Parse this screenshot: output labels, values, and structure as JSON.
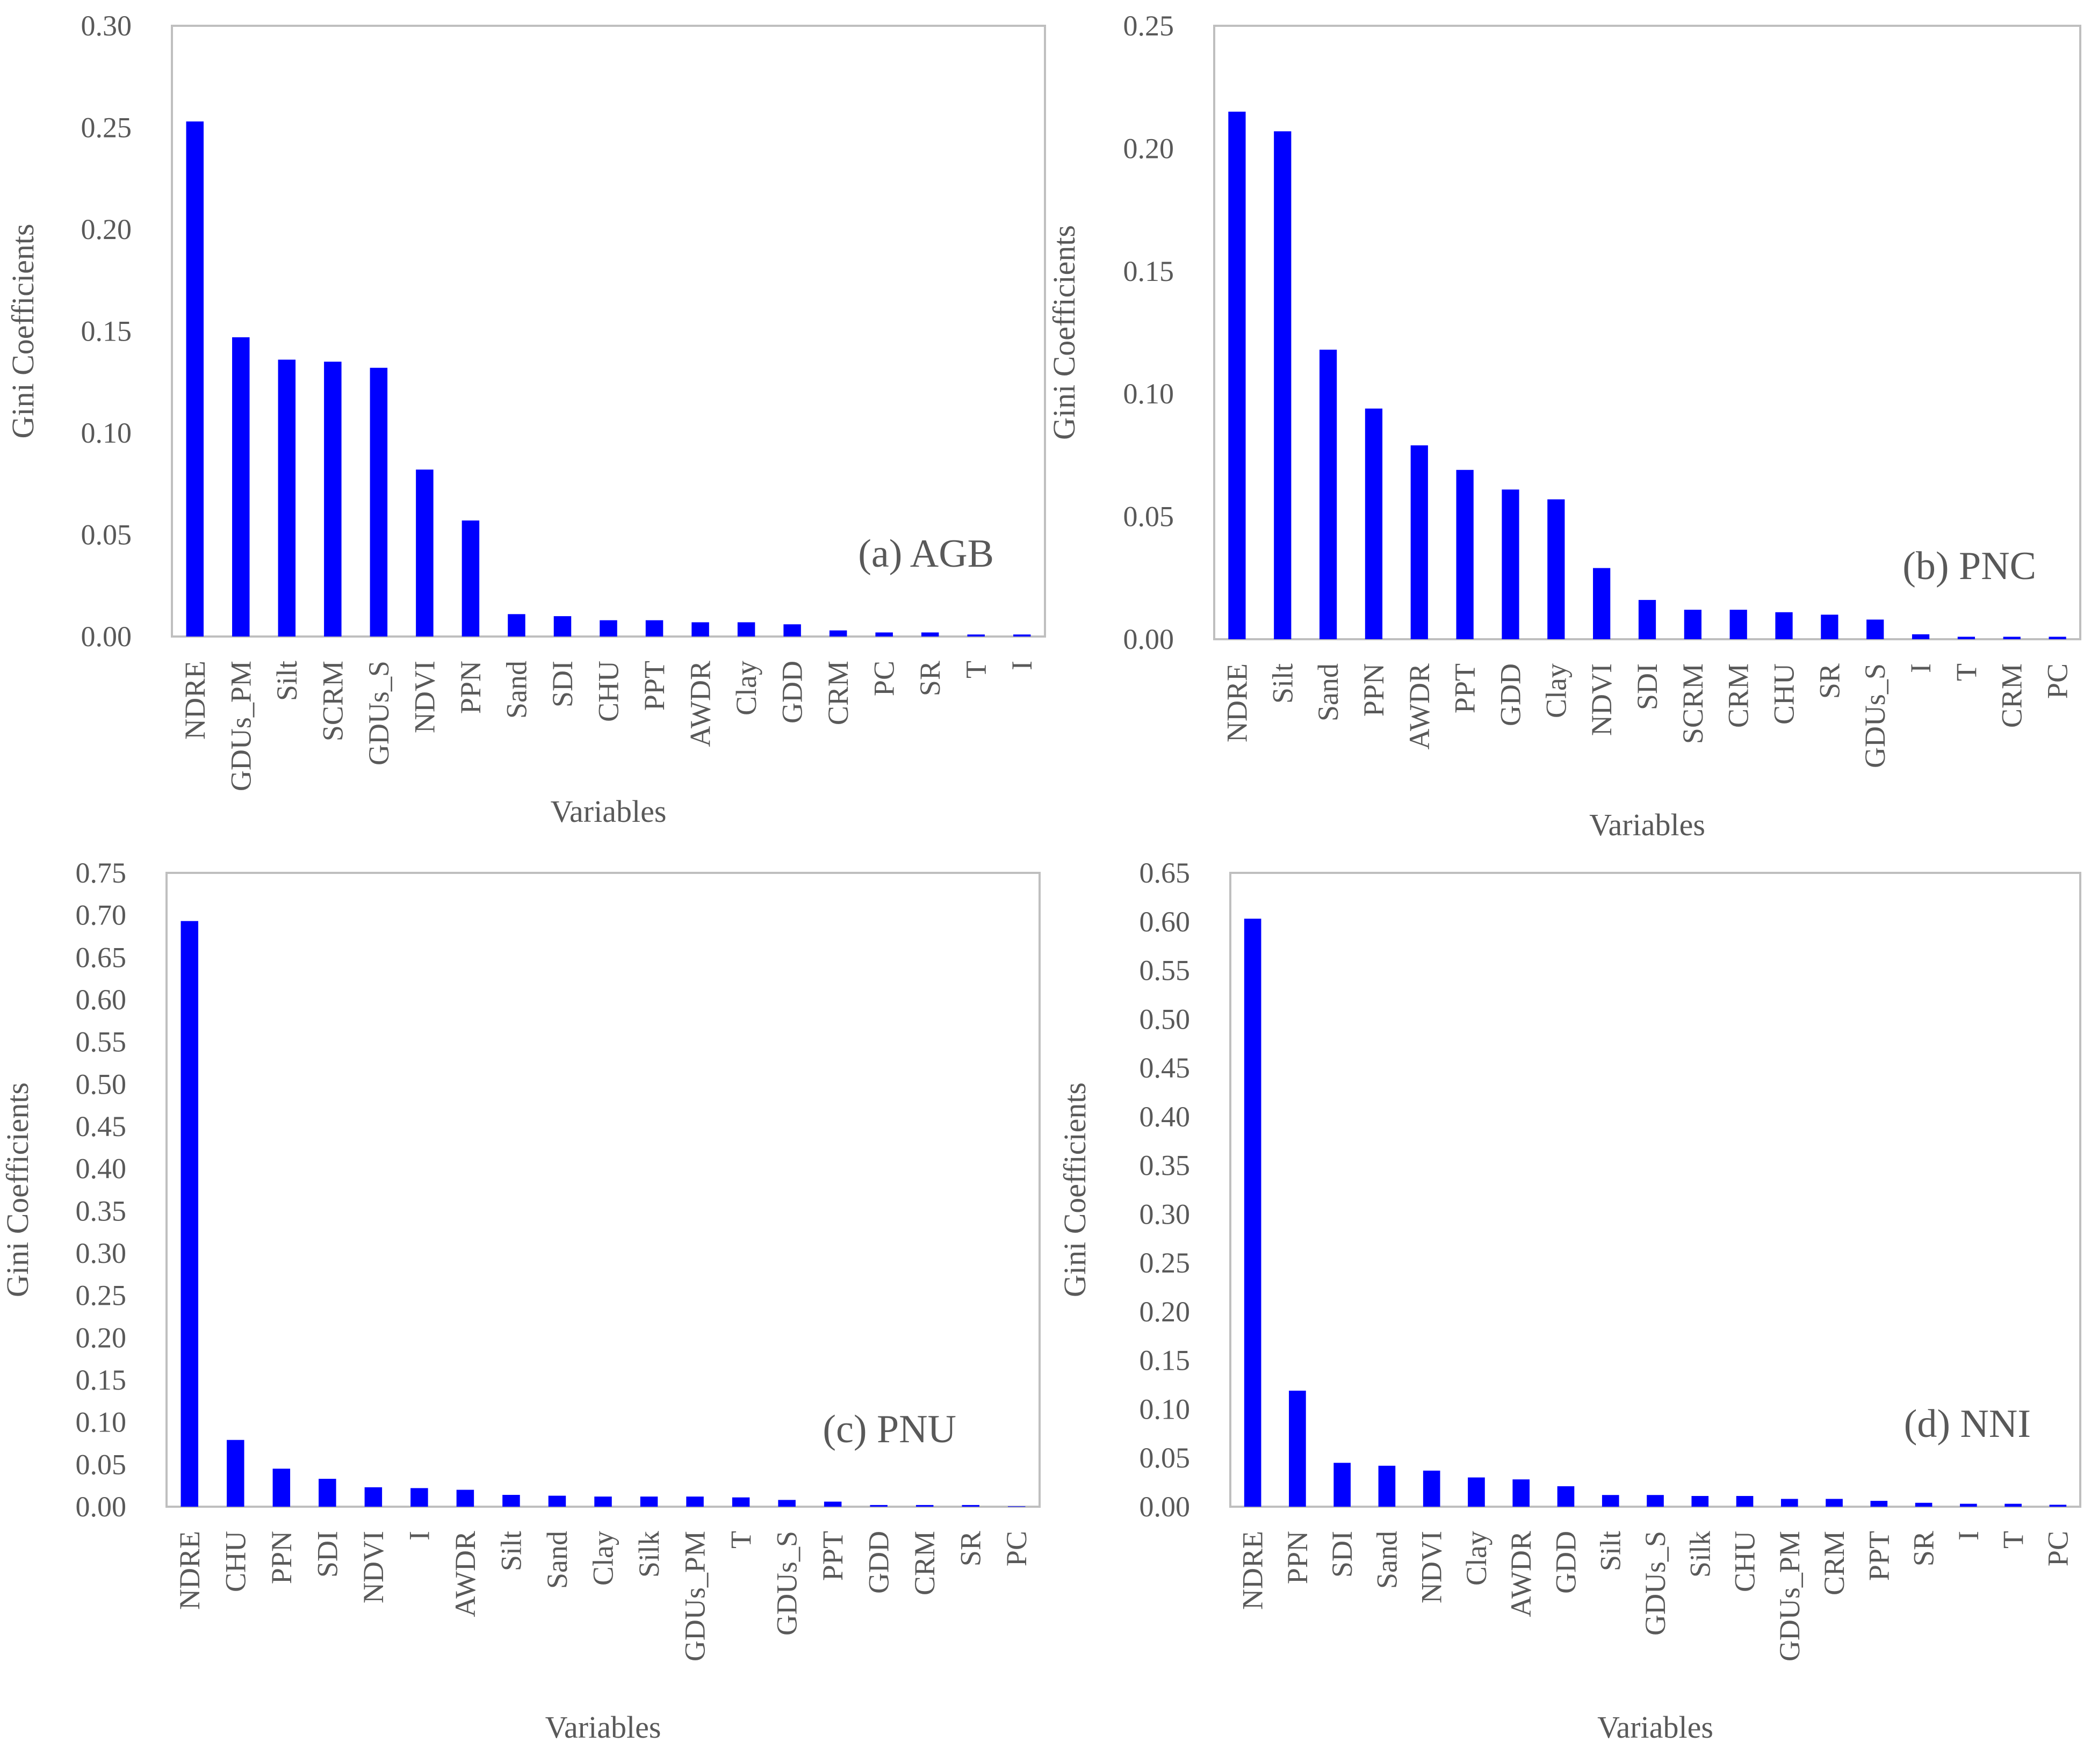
{
  "colors": {
    "bar": "#0000FF",
    "frame": "#BFBFBF",
    "text": "#595959"
  },
  "chart_data": [
    {
      "type": "bar",
      "panel_label": "(a) AGB",
      "xlabel": "Variables",
      "ylabel": "Gini Coefficients",
      "ylim": [
        0,
        0.3
      ],
      "ytick_step": 0.05,
      "categories": [
        "NDRE",
        "GDUs_PM",
        "Silt",
        "SCRM",
        "GDUs_S",
        "NDVI",
        "PPN",
        "Sand",
        "SDI",
        "CHU",
        "PPT",
        "AWDR",
        "Clay",
        "GDD",
        "CRM",
        "PC",
        "SR",
        "T",
        "I"
      ],
      "values": [
        0.253,
        0.147,
        0.136,
        0.135,
        0.132,
        0.082,
        0.057,
        0.011,
        0.01,
        0.008,
        0.008,
        0.007,
        0.007,
        0.006,
        0.003,
        0.002,
        0.002,
        0.001,
        0.001
      ]
    },
    {
      "type": "bar",
      "panel_label": "(b) PNC",
      "xlabel": "Variables",
      "ylabel": "Gini Coefficients",
      "ylim": [
        0,
        0.25
      ],
      "ytick_step": 0.05,
      "categories": [
        "NDRE",
        "Silt",
        "Sand",
        "PPN",
        "AWDR",
        "PPT",
        "GDD",
        "Clay",
        "NDVI",
        "SDI",
        "SCRM",
        "CRM",
        "CHU",
        "SR",
        "GDUs_S",
        "I",
        "T",
        "CRM",
        "PC"
      ],
      "values": [
        0.215,
        0.207,
        0.118,
        0.094,
        0.079,
        0.069,
        0.061,
        0.057,
        0.029,
        0.016,
        0.012,
        0.012,
        0.011,
        0.01,
        0.008,
        0.002,
        0.001,
        0.001,
        0.001
      ]
    },
    {
      "type": "bar",
      "panel_label": "(c) PNU",
      "xlabel": "Variables",
      "ylabel": "Gini Coefficients",
      "ylim": [
        0,
        0.75
      ],
      "ytick_step": 0.05,
      "categories": [
        "NDRE",
        "CHU",
        "PPN",
        "SDI",
        "NDVI",
        "I",
        "AWDR",
        "Silt",
        "Sand",
        "Clay",
        "Silk",
        "GDUs_PM",
        "T",
        "GDUs_S",
        "PPT",
        "GDD",
        "CRM",
        "SR",
        "PC"
      ],
      "values": [
        0.693,
        0.079,
        0.045,
        0.033,
        0.023,
        0.022,
        0.02,
        0.014,
        0.013,
        0.012,
        0.012,
        0.012,
        0.011,
        0.008,
        0.006,
        0.002,
        0.002,
        0.002,
        0.0005
      ]
    },
    {
      "type": "bar",
      "panel_label": "(d) NNI",
      "xlabel": "Variables",
      "ylabel": "Gini Coefficients",
      "ylim": [
        0,
        0.65
      ],
      "ytick_step": 0.05,
      "categories": [
        "NDRE",
        "PPN",
        "SDI",
        "Sand",
        "NDVI",
        "Clay",
        "AWDR",
        "GDD",
        "Silt",
        "GDUs_S",
        "Silk",
        "CHU",
        "GDUs_PM",
        "CRM",
        "PPT",
        "SR",
        "I",
        "T",
        "PC"
      ],
      "values": [
        0.603,
        0.119,
        0.045,
        0.042,
        0.037,
        0.03,
        0.028,
        0.021,
        0.012,
        0.012,
        0.011,
        0.011,
        0.008,
        0.008,
        0.006,
        0.004,
        0.003,
        0.003,
        0.002
      ]
    }
  ]
}
